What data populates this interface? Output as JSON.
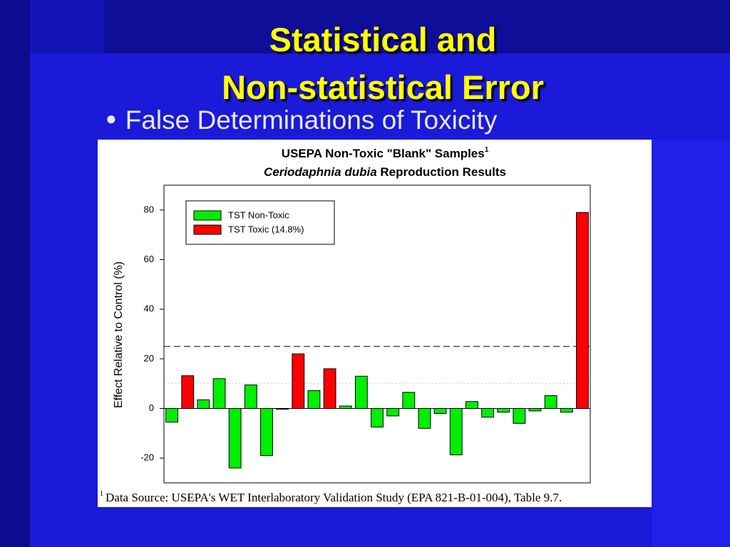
{
  "slide": {
    "title_line1": "Statistical and",
    "title_line2": "Non-statistical Error",
    "bullet": "False Determinations of Toxicity"
  },
  "chart_data": {
    "type": "bar",
    "title": "USEPA Non-Toxic \"Blank\" Samples",
    "title_note": "1",
    "subtitle_italic": "Ceriodaphnia dubia",
    "subtitle": "Reproduction Results",
    "y_label": "Effect Relative to Control (%)",
    "footnote_mark": "1",
    "footnote": "Data Source: USEPA's WET Interlaboratory Validation Study (EPA 821-B-01-004), Table 9.7.",
    "categories": [
      null,
      null,
      null,
      null,
      null,
      null,
      null,
      null,
      null,
      null,
      null,
      null,
      null,
      null,
      null,
      null,
      null,
      null,
      null,
      null,
      null,
      null,
      null,
      null,
      null,
      null,
      null
    ],
    "series": [
      {
        "name": "TST Non-Toxic",
        "color": "#00ee00",
        "values": [
          -5.5,
          null,
          3.5,
          12,
          -24,
          9.5,
          -19,
          -0.3,
          null,
          7.2,
          null,
          1,
          13,
          -7.5,
          -3,
          6.5,
          -8,
          -2,
          -18.7,
          2.8,
          -3.5,
          -1.5,
          -6,
          -1,
          5.2,
          -1.5,
          null
        ]
      },
      {
        "name": "TST Toxic (14.8%)",
        "color": "#ff0000",
        "values": [
          null,
          13.2,
          null,
          null,
          null,
          null,
          null,
          null,
          22,
          null,
          16,
          null,
          null,
          null,
          null,
          null,
          null,
          null,
          null,
          null,
          null,
          null,
          null,
          null,
          null,
          null,
          79
        ]
      }
    ],
    "ylim": [
      -30,
      90
    ],
    "yticks": [
      -20,
      0,
      20,
      40,
      60,
      80
    ],
    "hlines": [
      {
        "value": 25,
        "style": "dashed"
      },
      {
        "value": 10,
        "style": "dotted"
      }
    ],
    "legend": "upper left"
  }
}
